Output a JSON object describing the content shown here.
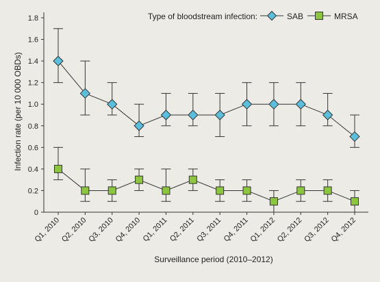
{
  "chart_data": {
    "type": "line",
    "title": "",
    "xlabel": "Surveillance period (2010–2012)",
    "ylabel": "Infection rate (per 10 000 OBDs)",
    "ylim": [
      0,
      1.8
    ],
    "yticks": [
      0,
      0.2,
      0.4,
      0.6,
      0.8,
      1.0,
      1.2,
      1.4,
      1.6,
      1.8
    ],
    "ytick_labels": [
      "0",
      "0.2",
      "0.4",
      "0.6",
      "0.8",
      "1.0",
      "1.2",
      "1.4",
      "1.6",
      "1.8"
    ],
    "categories": [
      "Q1, 2010",
      "Q2, 2010",
      "Q3, 2010",
      "Q4, 2010",
      "Q1, 2011",
      "Q2, 2011",
      "Q3, 2011",
      "Q4, 2011",
      "Q1, 2012",
      "Q2, 2012",
      "Q3, 2012",
      "Q4, 2012"
    ],
    "legend_title": "Type of bloodstream infection:",
    "legend_position": "top-right",
    "grid": false,
    "series": [
      {
        "name": "SAB",
        "marker": "diamond",
        "color": "#5bbfdc",
        "values": [
          1.4,
          1.1,
          1.0,
          0.8,
          0.9,
          0.9,
          0.9,
          1.0,
          1.0,
          1.0,
          0.9,
          0.7
        ],
        "lower": [
          1.2,
          0.9,
          0.9,
          0.7,
          0.8,
          0.8,
          0.7,
          0.8,
          0.8,
          0.8,
          0.8,
          0.6
        ],
        "upper": [
          1.7,
          1.4,
          1.2,
          1.0,
          1.1,
          1.1,
          1.1,
          1.2,
          1.2,
          1.2,
          1.1,
          0.9
        ]
      },
      {
        "name": "MRSA",
        "marker": "square",
        "color": "#8cc63f",
        "values": [
          0.4,
          0.2,
          0.2,
          0.3,
          0.2,
          0.3,
          0.2,
          0.2,
          0.1,
          0.2,
          0.2,
          0.1
        ],
        "lower": [
          0.3,
          0.1,
          0.1,
          0.2,
          0.1,
          0.2,
          0.1,
          0.1,
          0.0,
          0.1,
          0.1,
          0.0
        ],
        "upper": [
          0.6,
          0.4,
          0.3,
          0.4,
          0.4,
          0.4,
          0.3,
          0.3,
          0.2,
          0.3,
          0.3,
          0.2
        ]
      }
    ]
  }
}
